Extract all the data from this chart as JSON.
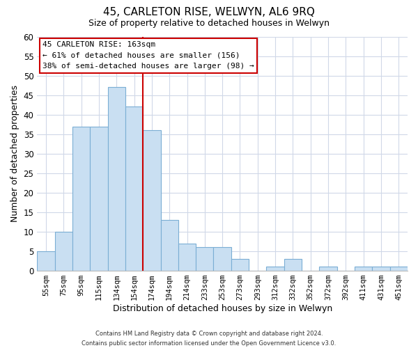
{
  "title": "45, CARLETON RISE, WELWYN, AL6 9RQ",
  "subtitle": "Size of property relative to detached houses in Welwyn",
  "xlabel": "Distribution of detached houses by size in Welwyn",
  "ylabel": "Number of detached properties",
  "bar_labels": [
    "55sqm",
    "75sqm",
    "95sqm",
    "115sqm",
    "134sqm",
    "154sqm",
    "174sqm",
    "194sqm",
    "214sqm",
    "233sqm",
    "253sqm",
    "273sqm",
    "293sqm",
    "312sqm",
    "332sqm",
    "352sqm",
    "372sqm",
    "392sqm",
    "411sqm",
    "431sqm",
    "451sqm"
  ],
  "bar_heights": [
    5,
    10,
    37,
    37,
    47,
    42,
    36,
    13,
    7,
    6,
    6,
    3,
    0,
    1,
    3,
    0,
    1,
    0,
    1,
    1,
    1
  ],
  "bar_color": "#c9dff2",
  "bar_edge_color": "#7baed4",
  "vline_x": 5.5,
  "vline_color": "#cc0000",
  "ylim": [
    0,
    60
  ],
  "yticks": [
    0,
    5,
    10,
    15,
    20,
    25,
    30,
    35,
    40,
    45,
    50,
    55,
    60
  ],
  "annotation_title": "45 CARLETON RISE: 163sqm",
  "annotation_line1": "← 61% of detached houses are smaller (156)",
  "annotation_line2": "38% of semi-detached houses are larger (98) →",
  "annotation_box_color": "#ffffff",
  "annotation_box_edge": "#cc0000",
  "footer_line1": "Contains HM Land Registry data © Crown copyright and database right 2024.",
  "footer_line2": "Contains public sector information licensed under the Open Government Licence v3.0.",
  "background_color": "#ffffff",
  "grid_color": "#d0d8e8"
}
